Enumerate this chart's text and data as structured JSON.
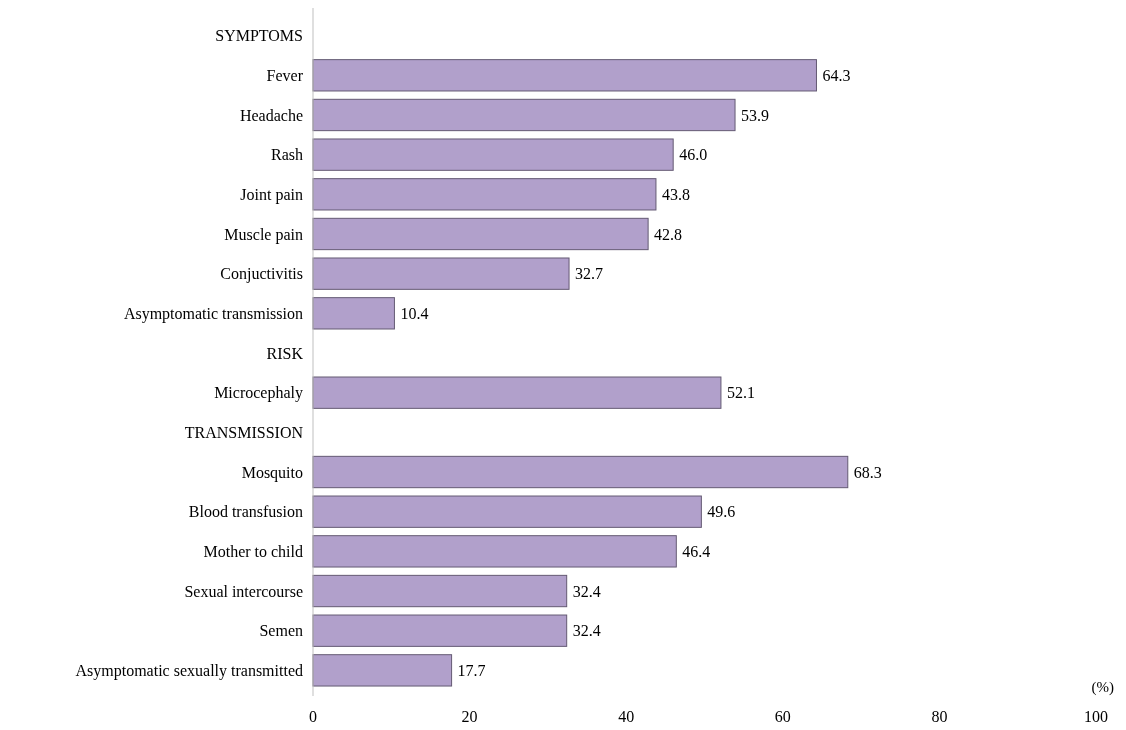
{
  "chart_data": {
    "type": "bar",
    "orientation": "horizontal",
    "xlabel": "(%)",
    "categories": [
      "SYMPTOMS",
      "Fever",
      "Headache",
      "Rash",
      "Joint pain",
      "Muscle pain",
      "Conjuctivitis",
      "Asymptomatic transmission",
      "RISK",
      "Microcephaly",
      "TRANSMISSION",
      "Mosquito",
      "Blood transfusion",
      "Mother to child",
      "Sexual intercourse",
      "Semen",
      "Asymptomatic sexually transmitted"
    ],
    "values": [
      null,
      64.3,
      53.9,
      46.0,
      43.8,
      42.8,
      32.7,
      10.4,
      null,
      52.1,
      null,
      68.3,
      49.6,
      46.4,
      32.4,
      32.4,
      17.7
    ],
    "value_labels": [
      null,
      "64.3",
      "53.9",
      "46.0",
      "43.8",
      "42.8",
      "32.7",
      "10.4",
      null,
      "52.1",
      null,
      "68.3",
      "49.6",
      "46.4",
      "32.4",
      "32.4",
      "17.7"
    ],
    "color": "#b1a0cb",
    "xlim": [
      0,
      100
    ],
    "xticks": [
      0,
      20,
      40,
      60,
      80,
      100
    ]
  }
}
